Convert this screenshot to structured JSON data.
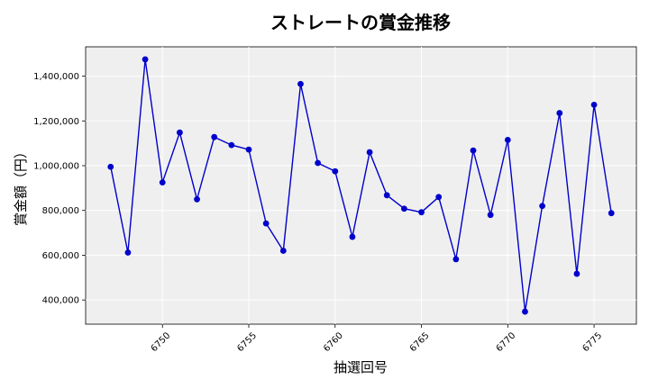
{
  "chart_data": {
    "type": "line",
    "title": "ストレートの賞金推移",
    "xlabel": "抽選回号",
    "ylabel": "賞金額（円）",
    "x": [
      6747,
      6748,
      6749,
      6750,
      6751,
      6752,
      6753,
      6754,
      6755,
      6756,
      6757,
      6758,
      6759,
      6760,
      6761,
      6762,
      6763,
      6764,
      6765,
      6766,
      6767,
      6768,
      6769,
      6770,
      6771,
      6772,
      6773,
      6774,
      6775,
      6776
    ],
    "series": [
      {
        "values": [
          995000,
          612000,
          1475000,
          925000,
          1148000,
          850000,
          1128000,
          1092000,
          1072000,
          742000,
          620000,
          1365000,
          1012000,
          975000,
          682000,
          1060000,
          868000,
          808000,
          792000,
          860000,
          582000,
          1068000,
          780000,
          1115000,
          348000,
          820000,
          1235000,
          517000,
          1272000,
          788000
        ],
        "color": "#0000cc"
      }
    ],
    "xticks": [
      6750,
      6755,
      6760,
      6765,
      6770,
      6775
    ],
    "yticks": [
      400000,
      600000,
      800000,
      1000000,
      1200000,
      1400000
    ],
    "ytick_labels": [
      "400,000",
      "600,000",
      "800,000",
      "1,000,000",
      "1,200,000",
      "1,400,000"
    ],
    "xlim": [
      6745.55,
      6777.45
    ],
    "ylim": [
      292000,
      1531000
    ],
    "grid": true,
    "background": "#efefef"
  }
}
